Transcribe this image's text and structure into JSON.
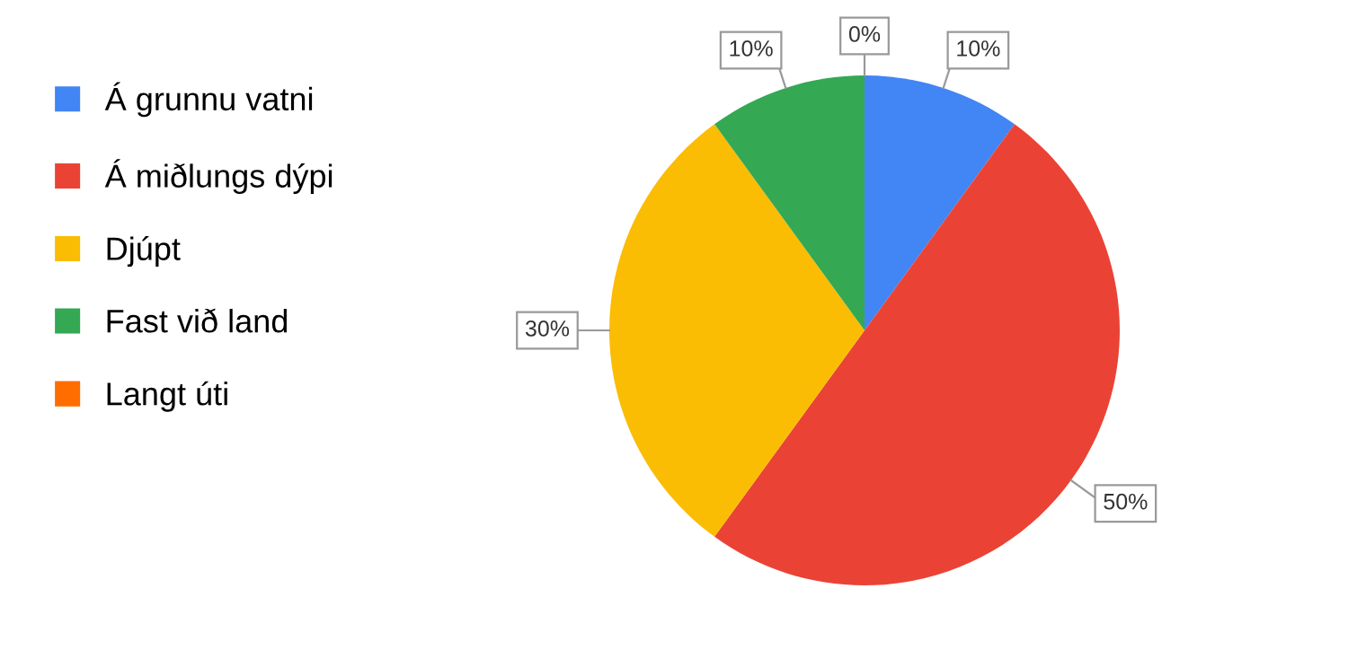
{
  "chart_data": {
    "type": "pie",
    "categories": [
      "Á grunnu vatni",
      "Á miðlungs dýpi",
      "Djúpt",
      "Fast við land",
      "Langt úti"
    ],
    "values": [
      10,
      50,
      30,
      10,
      0
    ],
    "colors": [
      "#4285f4",
      "#ea4335",
      "#fbbc04",
      "#34a853",
      "#ff6d01"
    ],
    "value_labels": [
      "10%",
      "50%",
      "30%",
      "10%",
      "0%"
    ],
    "legend": "left"
  }
}
